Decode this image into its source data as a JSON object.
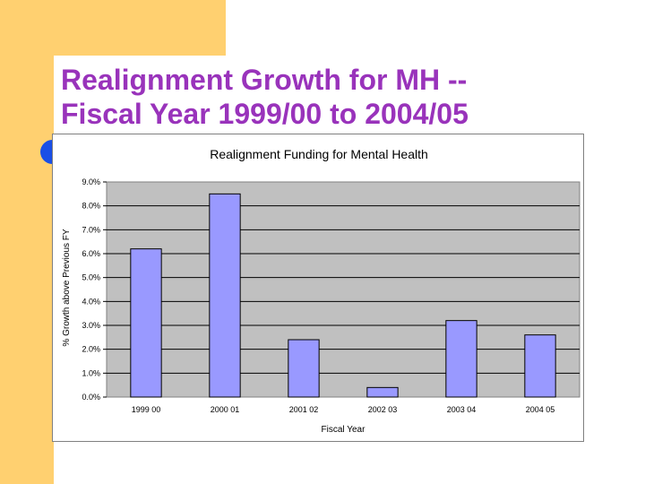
{
  "slide": {
    "title_line1": "Realignment Growth for MH --",
    "title_line2": "Fiscal Year 1999/00 to 2004/05"
  },
  "colors": {
    "title": "#9933bb",
    "accent_gold": "#ffd070",
    "accent_blue": "#1a4fe6",
    "bar_fill": "#9999ff",
    "plot_bg": "#c0c0c0"
  },
  "chart_data": {
    "type": "bar",
    "title": "Realignment Funding for Mental Health",
    "xlabel": "Fiscal Year",
    "ylabel": "% Growth above Previous FY",
    "categories": [
      "1999 00",
      "2000 01",
      "2001 02",
      "2002 03",
      "2003 04",
      "2004 05"
    ],
    "values": [
      6.2,
      8.5,
      2.4,
      0.4,
      3.2,
      2.6
    ],
    "ylim": [
      0,
      9
    ],
    "yticks": [
      "0.0%",
      "1.0%",
      "2.0%",
      "3.0%",
      "4.0%",
      "5.0%",
      "6.0%",
      "7.0%",
      "8.0%",
      "9.0%"
    ],
    "grid": true,
    "legend": "none"
  }
}
